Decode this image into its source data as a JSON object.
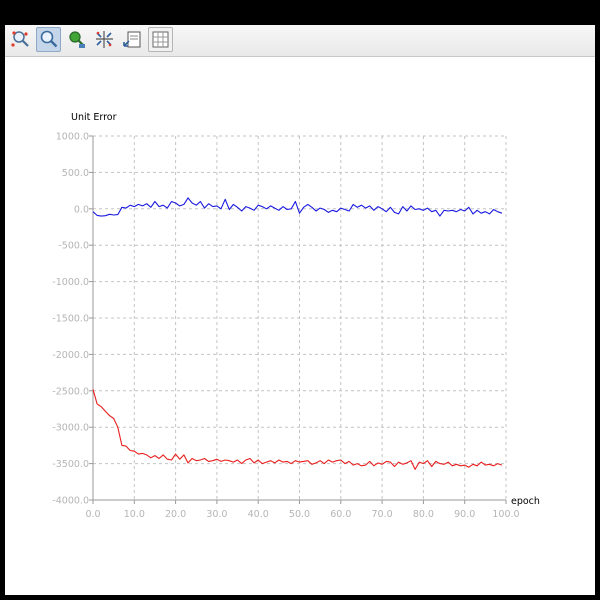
{
  "toolbar": {
    "buttons": [
      {
        "icon": "zoom-region-icon",
        "state": "normal"
      },
      {
        "icon": "zoom-icon",
        "state": "active"
      },
      {
        "icon": "pan-icon",
        "state": "normal"
      },
      {
        "icon": "autofit-icon",
        "state": "normal"
      },
      {
        "icon": "scale-icon",
        "state": "normal"
      },
      {
        "icon": "grid-icon",
        "state": "normal"
      }
    ]
  },
  "chart_data": {
    "type": "line",
    "ylabel": "Unit Error",
    "xlabel": "epoch",
    "xlim": [
      0,
      100
    ],
    "ylim": [
      -4000,
      1000
    ],
    "x_ticks": [
      "0.0",
      "10.0",
      "20.0",
      "30.0",
      "40.0",
      "50.0",
      "60.0",
      "70.0",
      "80.0",
      "90.0",
      "100.0"
    ],
    "y_ticks": [
      "1000.0",
      "500.0",
      "0.0",
      "-500.0",
      "-1000.0",
      "-1500.0",
      "-2000.0",
      "-2500.0",
      "-3000.0",
      "-3500.0",
      "-4000.0"
    ],
    "grid": true,
    "grid_style": "dashed",
    "series": [
      {
        "color": "#1a1adf",
        "x": [
          0,
          1,
          2,
          3,
          4,
          5,
          6,
          7,
          8,
          9,
          10,
          11,
          12,
          13,
          14,
          15,
          16,
          17,
          18,
          19,
          20,
          21,
          22,
          23,
          24,
          25,
          26,
          27,
          28,
          29,
          30,
          31,
          32,
          33,
          34,
          35,
          36,
          37,
          38,
          39,
          40,
          41,
          42,
          43,
          44,
          45,
          46,
          47,
          48,
          49,
          50,
          51,
          52,
          53,
          54,
          55,
          56,
          57,
          58,
          59,
          60,
          61,
          62,
          63,
          64,
          65,
          66,
          67,
          68,
          69,
          70,
          71,
          72,
          73,
          74,
          75,
          76,
          77,
          78,
          79,
          80,
          81,
          82,
          83,
          84,
          85,
          86,
          87,
          88,
          89,
          90,
          91,
          92,
          93,
          94,
          95,
          96,
          97,
          98,
          99
        ],
        "values": [
          -40,
          -90,
          -100,
          -95,
          -75,
          -85,
          -80,
          20,
          10,
          50,
          30,
          60,
          40,
          70,
          20,
          100,
          30,
          50,
          10,
          100,
          80,
          40,
          60,
          150,
          80,
          50,
          100,
          10,
          70,
          30,
          40,
          0,
          130,
          -10,
          60,
          20,
          -30,
          30,
          10,
          -20,
          50,
          30,
          0,
          40,
          10,
          -20,
          30,
          -10,
          0,
          100,
          -60,
          20,
          60,
          20,
          -30,
          10,
          -10,
          -50,
          -20,
          -40,
          10,
          -10,
          -30,
          60,
          20,
          50,
          10,
          40,
          -20,
          30,
          0,
          -40,
          20,
          -50,
          -70,
          30,
          -30,
          40,
          -10,
          0,
          -20,
          10,
          -40,
          -20,
          -100,
          -20,
          -30,
          -20,
          -40,
          -10,
          -30,
          20,
          -70,
          -20,
          -60,
          -40,
          -70,
          -10,
          -40,
          -60
        ]
      },
      {
        "color": "#e81e1e",
        "x": [
          0,
          1,
          2,
          3,
          4,
          5,
          6,
          7,
          8,
          9,
          10,
          11,
          12,
          13,
          14,
          15,
          16,
          17,
          18,
          19,
          20,
          21,
          22,
          23,
          24,
          25,
          26,
          27,
          28,
          29,
          30,
          31,
          32,
          33,
          34,
          35,
          36,
          37,
          38,
          39,
          40,
          41,
          42,
          43,
          44,
          45,
          46,
          47,
          48,
          49,
          50,
          51,
          52,
          53,
          54,
          55,
          56,
          57,
          58,
          59,
          60,
          61,
          62,
          63,
          64,
          65,
          66,
          67,
          68,
          69,
          70,
          71,
          72,
          73,
          74,
          75,
          76,
          77,
          78,
          79,
          80,
          81,
          82,
          83,
          84,
          85,
          86,
          87,
          88,
          89,
          90,
          91,
          92,
          93,
          94,
          95,
          96,
          97,
          98,
          99
        ],
        "values": [
          -2480,
          -2680,
          -2720,
          -2780,
          -2840,
          -2880,
          -3000,
          -3250,
          -3260,
          -3320,
          -3330,
          -3370,
          -3360,
          -3380,
          -3420,
          -3390,
          -3430,
          -3380,
          -3440,
          -3450,
          -3370,
          -3440,
          -3380,
          -3490,
          -3430,
          -3460,
          -3450,
          -3430,
          -3470,
          -3460,
          -3440,
          -3470,
          -3450,
          -3460,
          -3480,
          -3450,
          -3500,
          -3450,
          -3430,
          -3490,
          -3450,
          -3500,
          -3480,
          -3460,
          -3490,
          -3450,
          -3480,
          -3470,
          -3500,
          -3460,
          -3480,
          -3470,
          -3460,
          -3510,
          -3490,
          -3460,
          -3500,
          -3450,
          -3480,
          -3460,
          -3450,
          -3500,
          -3470,
          -3520,
          -3500,
          -3530,
          -3520,
          -3470,
          -3530,
          -3490,
          -3510,
          -3470,
          -3480,
          -3540,
          -3480,
          -3510,
          -3490,
          -3460,
          -3580,
          -3480,
          -3500,
          -3460,
          -3540,
          -3470,
          -3500,
          -3510,
          -3480,
          -3530,
          -3510,
          -3530,
          -3520,
          -3550,
          -3510,
          -3530,
          -3480,
          -3520,
          -3510,
          -3530,
          -3500,
          -3520
        ]
      }
    ]
  }
}
